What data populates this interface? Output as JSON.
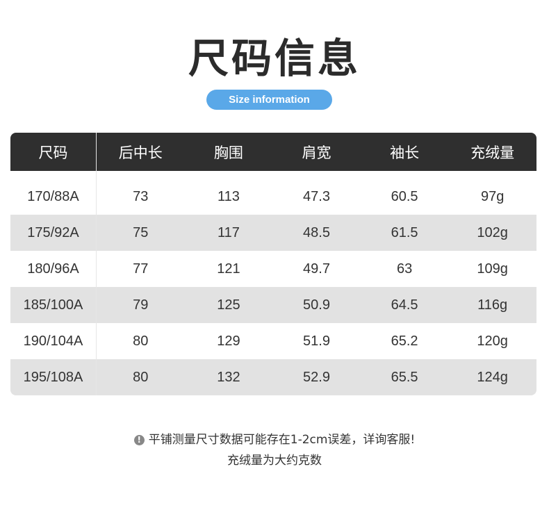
{
  "title": "尺码信息",
  "subtitle": "Size information",
  "colors": {
    "header_bg": "#2f2f2f",
    "pill": "#5aa8e8",
    "alt_row": "#e2e2e2"
  },
  "table": {
    "headers": [
      "尺码",
      "后中长",
      "胸围",
      "肩宽",
      "袖长",
      "充绒量"
    ],
    "rows": [
      [
        "170/88A",
        "73",
        "113",
        "47.3",
        "60.5",
        "97g"
      ],
      [
        "175/92A",
        "75",
        "117",
        "48.5",
        "61.5",
        "102g"
      ],
      [
        "180/96A",
        "77",
        "121",
        "49.7",
        "63",
        "109g"
      ],
      [
        "185/100A",
        "79",
        "125",
        "50.9",
        "64.5",
        "116g"
      ],
      [
        "190/104A",
        "80",
        "129",
        "51.9",
        "65.2",
        "120g"
      ],
      [
        "195/108A",
        "80",
        "132",
        "52.9",
        "65.5",
        "124g"
      ]
    ]
  },
  "notes": {
    "icon": "exclamation-circle-icon",
    "line1": "平铺测量尺寸数据可能存在1-2cm误差，详询客服!",
    "line2": "充绒量为大约克数"
  }
}
